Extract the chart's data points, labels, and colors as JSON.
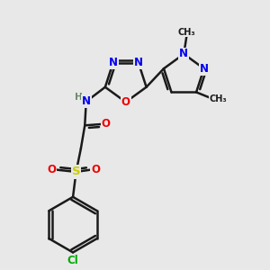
{
  "bg_color": "#e8e8e8",
  "bond_color": "#1a1a1a",
  "bond_width": 1.8,
  "atoms": {
    "N": "#0000ee",
    "O": "#ee0000",
    "S": "#cccc00",
    "Cl": "#00aa00",
    "H": "#6a8a6a",
    "C": "#1a1a1a"
  },
  "fs": 8.5
}
